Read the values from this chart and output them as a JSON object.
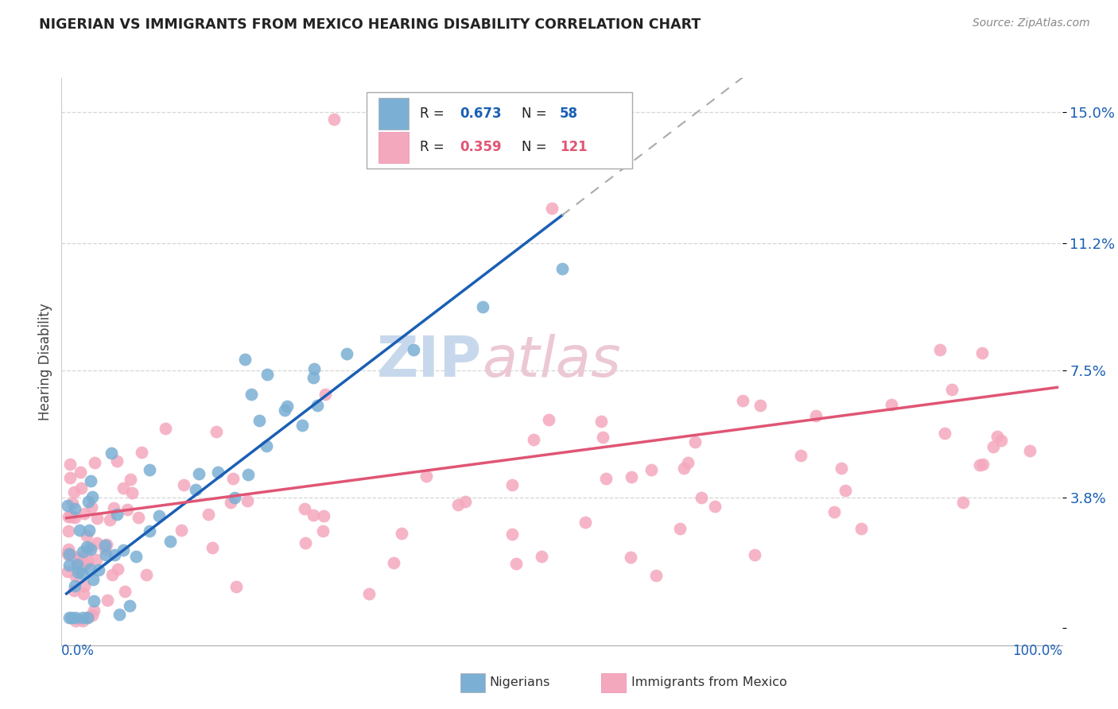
{
  "title": "NIGERIAN VS IMMIGRANTS FROM MEXICO HEARING DISABILITY CORRELATION CHART",
  "source": "Source: ZipAtlas.com",
  "ylabel": "Hearing Disability",
  "nigerian_color": "#7bafd4",
  "nigerian_edge_color": "#5588bb",
  "mexico_color": "#f4a8be",
  "mexico_edge_color": "#e88aa8",
  "nigerian_line_color": "#1a5fb4",
  "mexico_line_color": "#e05575",
  "nigerian_line_ext_color": "#aaaaaa",
  "background_color": "#ffffff",
  "ytick_vals": [
    0.0,
    3.8,
    7.5,
    11.2,
    15.0
  ],
  "ytick_labels": [
    "",
    "3.8%",
    "7.5%",
    "11.2%",
    "15.0%"
  ],
  "ymax": 16.0,
  "xmax": 100.0,
  "legend_r1": "R = 0.673",
  "legend_n1": "N = 58",
  "legend_r2": "R = 0.359",
  "legend_n2": "N = 121",
  "legend_r1_color": "#1a5fb4",
  "legend_n1_color": "#1a5fb4",
  "legend_r2_color": "#e05575",
  "legend_n2_color": "#e05575",
  "watermark_color": "#d8e4f0",
  "watermark_color2": "#f5dce5"
}
